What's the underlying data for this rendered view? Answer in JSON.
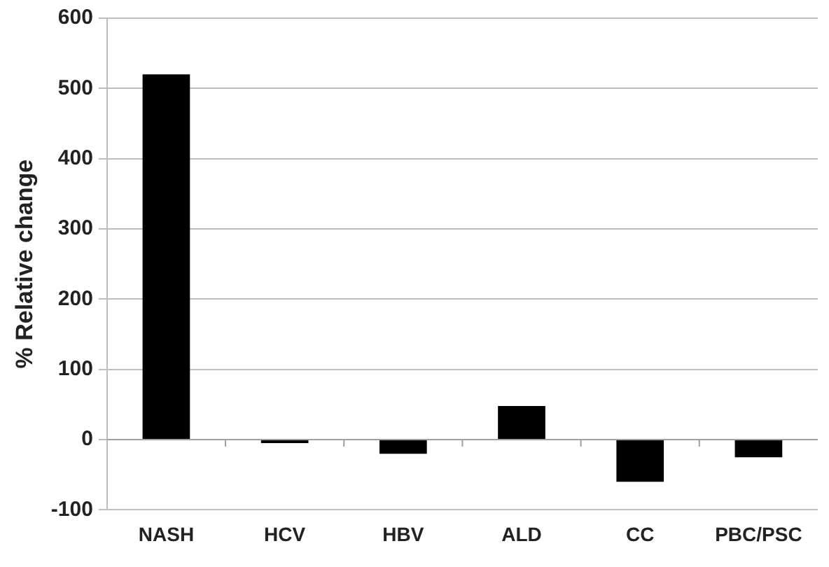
{
  "chart_data": {
    "type": "bar",
    "ylabel": "% Relative change",
    "categories": [
      "NASH",
      "HCV",
      "HBV",
      "ALD",
      "CC",
      "PBC/PSC"
    ],
    "values": [
      520,
      -5,
      -20,
      48,
      -60,
      -25
    ],
    "color": "#000000",
    "ylim": [
      -100,
      600
    ],
    "yticks": [
      -100,
      0,
      100,
      200,
      300,
      400,
      500,
      600
    ],
    "grid": "y",
    "legend": false
  }
}
